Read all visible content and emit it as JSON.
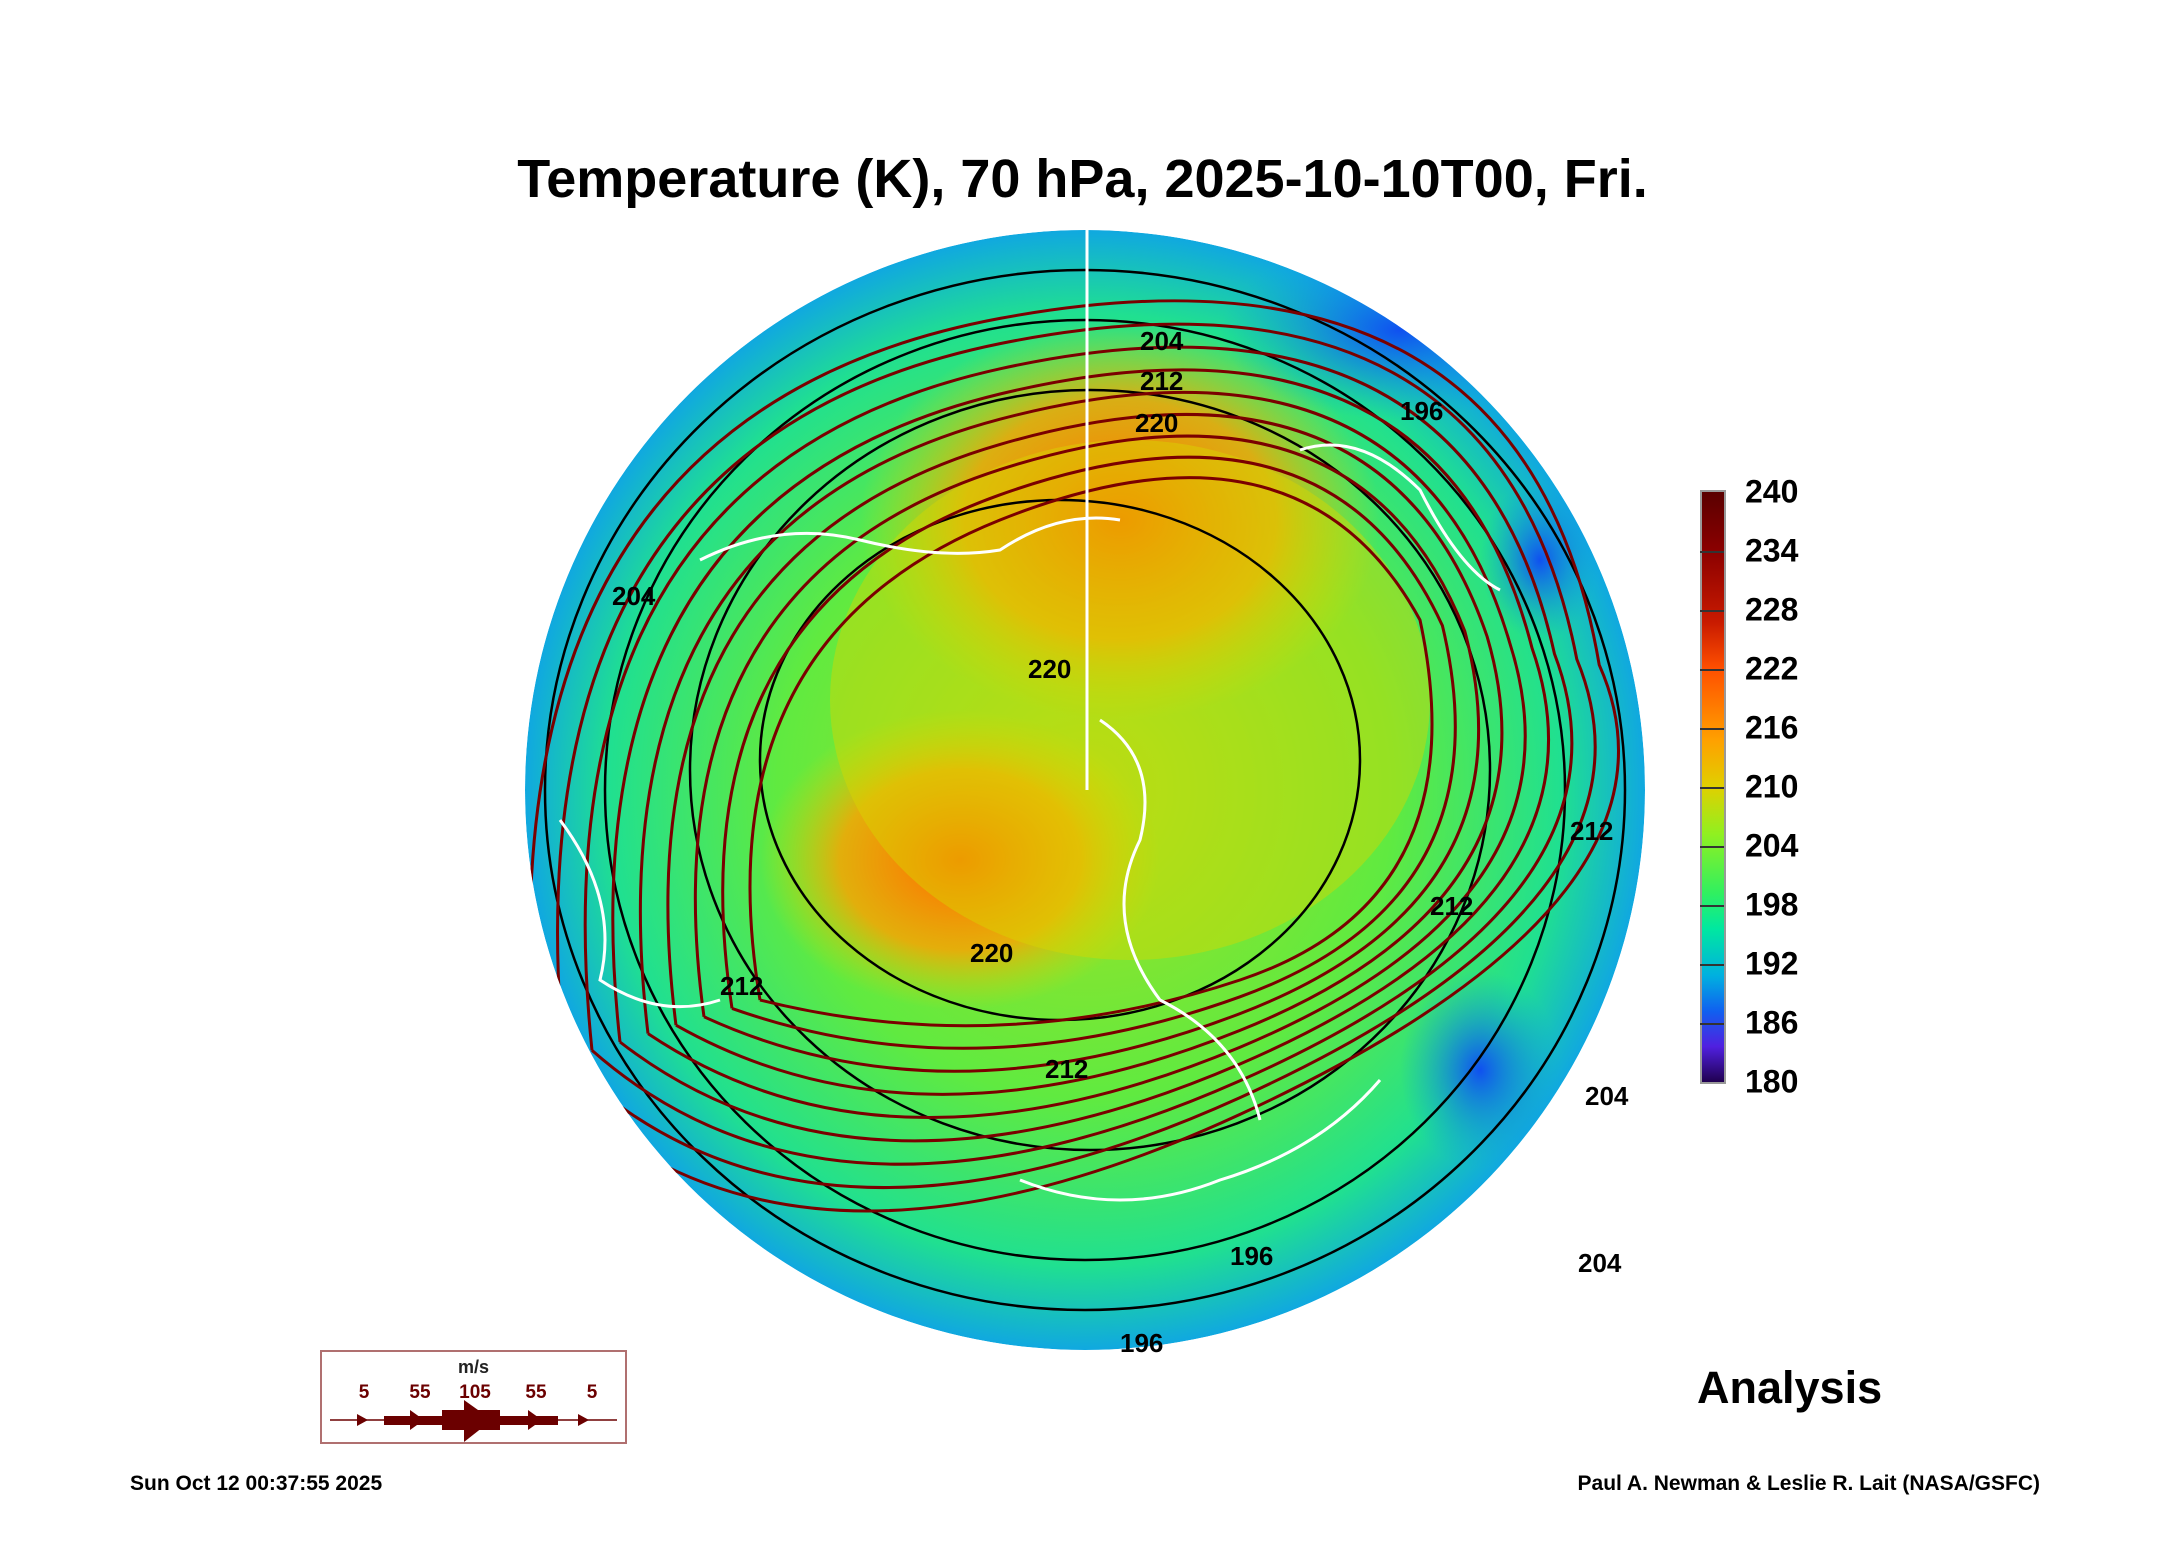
{
  "title": "Temperature (K), 70 hPa, 2025-10-10T00, Fri.",
  "chart_data": {
    "type": "heatmap",
    "projection": "north polar orthographic",
    "title": "Temperature (K), 70 hPa, 2025-10-10T00, Fri.",
    "colorbar": {
      "ticks": [
        "240",
        "234",
        "228",
        "222",
        "216",
        "210",
        "204",
        "198",
        "192",
        "186",
        "180"
      ],
      "range": [
        180,
        240
      ],
      "units": "K"
    },
    "contour_labels": [
      "204",
      "212",
      "220",
      "196",
      "212",
      "220",
      "212",
      "204",
      "212",
      "220",
      "212",
      "204",
      "196",
      "196",
      "204"
    ],
    "colors": {
      "cold": "#1060f0",
      "mid": "#30f060",
      "warm": "#ff8000",
      "streamline": "#7a0000",
      "coast": "#ffffff"
    }
  },
  "wind_legend": {
    "unit": "m/s",
    "values": [
      "5",
      "55",
      "105",
      "55",
      "5"
    ]
  },
  "label": "Analysis",
  "footer": {
    "timestamp": "Sun Oct 12 00:37:55 2025",
    "credit": "Paul A. Newman & Leslie R. Lait (NASA/GSFC)"
  }
}
